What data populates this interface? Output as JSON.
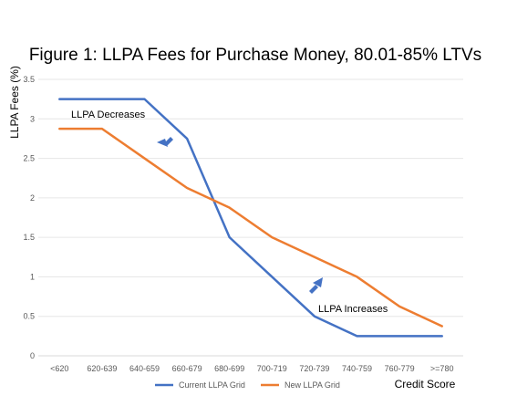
{
  "chart_data": {
    "type": "line",
    "title": "Figure 1: LLPA Fees for Purchase Money, 80.01-85% LTVs",
    "xlabel": "Credit Score",
    "ylabel": "LLPA Fees (%)",
    "categories": [
      "<620",
      "620-639",
      "640-659",
      "660-679",
      "680-699",
      "700-719",
      "720-739",
      "740-759",
      "760-779",
      ">=780"
    ],
    "ylim": [
      0,
      3.5
    ],
    "yticks": [
      0,
      0.5,
      1,
      1.5,
      2,
      2.5,
      3,
      3.5
    ],
    "ytick_labels": [
      "0",
      "0.5",
      "1",
      "1.5",
      "2",
      "2.5",
      "3",
      "3.5"
    ],
    "grid": true,
    "legend_position": "bottom",
    "series": [
      {
        "name": "Current LLPA Grid",
        "color": "#4472C4",
        "values": [
          3.25,
          3.25,
          3.25,
          2.75,
          1.5,
          1.0,
          0.5,
          0.25,
          0.25,
          0.25
        ]
      },
      {
        "name": "New LLPA Grid",
        "color": "#ED7D31",
        "values": [
          2.875,
          2.875,
          2.5,
          2.125,
          1.875,
          1.5,
          1.25,
          1.0,
          0.625,
          0.375
        ]
      }
    ],
    "annotations": [
      {
        "text": "LLPA Decreases",
        "arrow_direction": "down-left"
      },
      {
        "text": "LLPA Increases",
        "arrow_direction": "up-right"
      }
    ]
  }
}
